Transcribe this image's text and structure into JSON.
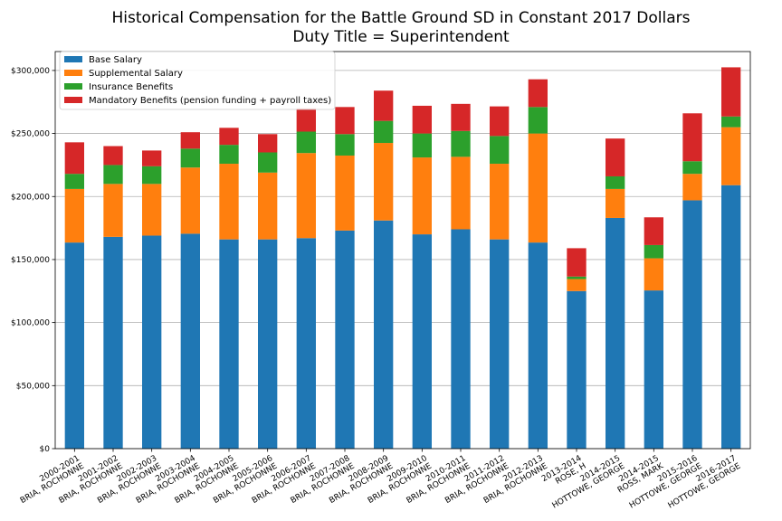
{
  "chart_data": {
    "type": "bar",
    "stacked": true,
    "title": "Historical Compensation for the Battle Ground SD in Constant 2017 Dollars",
    "subtitle": "Duty Title = Superintendent",
    "xlabel": "",
    "ylabel": "",
    "ylim": [
      0,
      315000
    ],
    "yticks": [
      0,
      50000,
      100000,
      150000,
      200000,
      250000,
      300000
    ],
    "ytick_labels": [
      "$0",
      "$50,000",
      "$100,000",
      "$150,000",
      "$200,000",
      "$250,000",
      "$300,000"
    ],
    "grid": "horizontal",
    "legend_position": "top-left",
    "categories": [
      [
        "2000-2001",
        "BRIA, ROCHONNE"
      ],
      [
        "2001-2002",
        "BRIA, ROCHONNE"
      ],
      [
        "2002-2003",
        "BRIA, ROCHONNE"
      ],
      [
        "2003-2004",
        "BRIA, ROCHONNE"
      ],
      [
        "2004-2005",
        "BRIA, ROCHONNE"
      ],
      [
        "2005-2006",
        "BRIA, ROCHONNE"
      ],
      [
        "2006-2007",
        "BRIA, ROCHONNE"
      ],
      [
        "2007-2008",
        "BRIA, ROCHONNE"
      ],
      [
        "2008-2009",
        "BRIA, ROCHONNE"
      ],
      [
        "2009-2010",
        "BRIA, ROCHONNE"
      ],
      [
        "2010-2011",
        "BRIA, ROCHONNE"
      ],
      [
        "2011-2012",
        "BRIA, ROCHONNE"
      ],
      [
        "2012-2013",
        "BRIA, ROCHONNE"
      ],
      [
        "2013-2014",
        "ROSE, H"
      ],
      [
        "2014-2015",
        "HOTTOWE, GEORGE"
      ],
      [
        "2014-2015",
        "ROSS, MARK"
      ],
      [
        "2015-2016",
        "HOTTOWE, GEORGE"
      ],
      [
        "2016-2017",
        "HOTTOWE, GEORGE"
      ]
    ],
    "series": [
      {
        "name": "Base Salary",
        "color": "#1f77b4",
        "values": [
          163500,
          168000,
          169000,
          170500,
          166000,
          166000,
          167000,
          173000,
          181000,
          170000,
          174000,
          166000,
          163500,
          125000,
          183000,
          125500,
          197000,
          209000
        ]
      },
      {
        "name": "Supplemental Salary",
        "color": "#ff7f0e",
        "values": [
          42500,
          42000,
          41000,
          52500,
          60000,
          53000,
          67500,
          59500,
          61500,
          61000,
          57500,
          60000,
          86500,
          9500,
          23000,
          25500,
          21000,
          46000
        ]
      },
      {
        "name": "Insurance Benefits",
        "color": "#2ca02c",
        "values": [
          12000,
          15000,
          14000,
          15000,
          15000,
          16000,
          17000,
          17000,
          17500,
          19000,
          20500,
          22000,
          21000,
          2000,
          10000,
          10500,
          10000,
          8500
        ]
      },
      {
        "name": "Mandatory Benefits (pension funding + payroll taxes)",
        "color": "#d62728",
        "values": [
          25000,
          15000,
          12500,
          13000,
          13500,
          14500,
          18500,
          21500,
          24000,
          22000,
          21500,
          23500,
          22000,
          22500,
          30000,
          22000,
          38000,
          39000
        ]
      }
    ]
  }
}
